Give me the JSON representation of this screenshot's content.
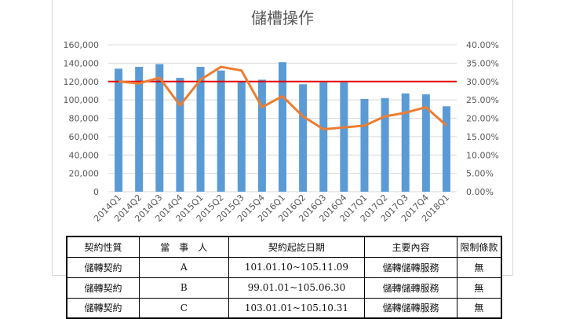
{
  "chart_data": {
    "type": "bar+line",
    "title": "儲槽操作",
    "categories": [
      "2014Q1",
      "2014Q2",
      "2014Q3",
      "2014Q4",
      "2015Q1",
      "2015Q2",
      "2015Q3",
      "2015Q4",
      "2016Q1",
      "2016Q2",
      "2016Q3",
      "2016Q4",
      "2017Q1",
      "2017Q2",
      "2017Q3",
      "2017Q4",
      "2018Q1"
    ],
    "series": [
      {
        "kind": "bar",
        "axis": "left",
        "color": "#5b9bd5",
        "values": [
          134000,
          136000,
          139000,
          124000,
          136000,
          132000,
          120000,
          122000,
          141000,
          117000,
          119000,
          119000,
          101000,
          102000,
          107000,
          106000,
          93000
        ]
      },
      {
        "kind": "line",
        "axis": "right",
        "color": "#ed7d31",
        "values": [
          0.3,
          0.295,
          0.31,
          0.235,
          0.305,
          0.34,
          0.33,
          0.23,
          0.26,
          0.205,
          0.17,
          0.175,
          0.18,
          0.205,
          0.215,
          0.23,
          0.18
        ]
      }
    ],
    "reference_line": {
      "axis": "right",
      "value": 0.3,
      "color": "#e00000"
    },
    "left_axis": {
      "range": [
        0,
        160000
      ],
      "ticks": [
        "0",
        "20,000",
        "40,000",
        "60,000",
        "80,000",
        "100,000",
        "120,000",
        "140,000",
        "160,000"
      ]
    },
    "right_axis": {
      "range": [
        0,
        0.4
      ],
      "ticks": [
        "0.00%",
        "5.00%",
        "10.00%",
        "15.00%",
        "20.00%",
        "25.00%",
        "30.00%",
        "35.00%",
        "40.00%"
      ]
    },
    "grid": true,
    "legend": "none"
  },
  "table": {
    "headers": [
      "契約性質",
      "當　事　人",
      "契約起訖日期",
      "主要內容",
      "限制條款"
    ],
    "rows": [
      [
        "儲轉契約",
        "A",
        "101.01.10~105.11.09",
        "儲轉儲轉服務",
        "無"
      ],
      [
        "儲轉契約",
        "B",
        "99.01.01~105.06.30",
        "儲轉儲轉服務",
        "無"
      ],
      [
        "儲轉契約",
        "C",
        "103.01.01~105.10.31",
        "儲轉儲轉服務",
        "無"
      ]
    ]
  }
}
